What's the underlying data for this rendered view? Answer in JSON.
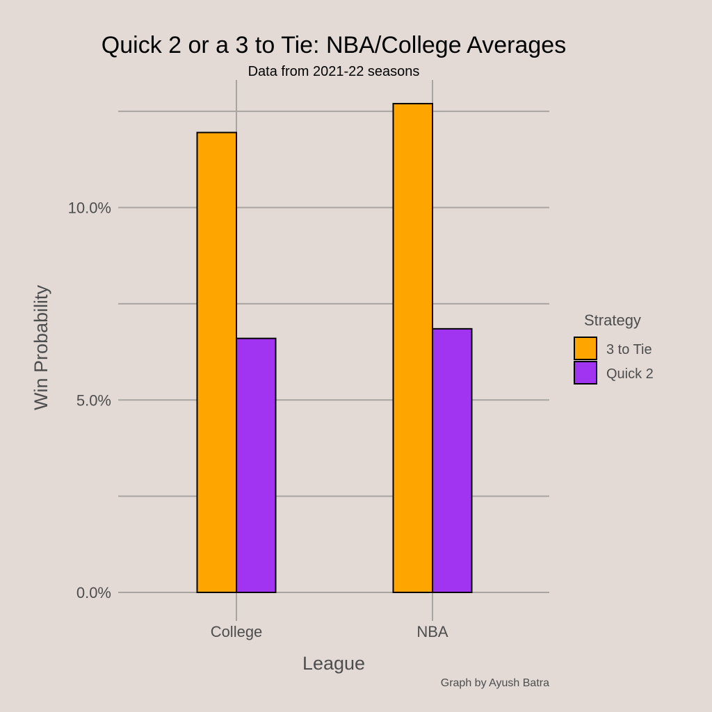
{
  "chart_data": {
    "type": "bar",
    "title": "Quick 2 or a 3 to Tie: NBA/College Averages",
    "subtitle": "Data from 2021-22 seasons",
    "xlabel": "League",
    "ylabel": "Win Probability",
    "categories": [
      "College",
      "NBA"
    ],
    "series": [
      {
        "name": "3 to Tie",
        "color": "#ffa500",
        "values": [
          11.95,
          12.7
        ]
      },
      {
        "name": "Quick 2",
        "color": "#a034f0",
        "values": [
          6.6,
          6.85
        ]
      }
    ],
    "ylim": [
      0,
      12.7
    ],
    "y_ticks": [
      0,
      5,
      10
    ],
    "y_tick_labels": [
      "0.0%",
      "5.0%",
      "10.0%"
    ],
    "y_minor_ticks": [
      2.5,
      7.5,
      12.5
    ],
    "grid": true,
    "legend": {
      "title": "Strategy",
      "placement": "right"
    },
    "caption": "Graph by Ayush Batra"
  }
}
